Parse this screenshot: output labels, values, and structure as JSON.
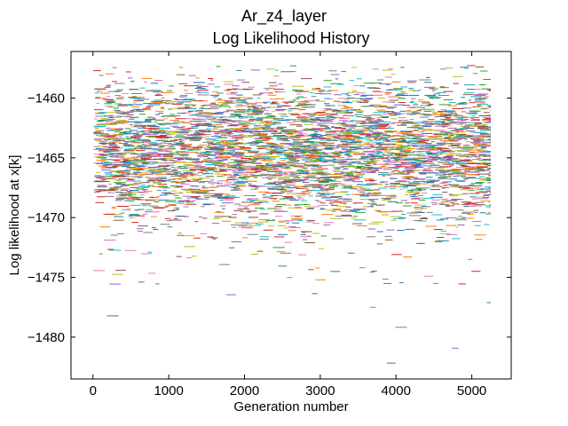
{
  "chart_data": {
    "type": "scatter",
    "title": "Ar_z4_layer",
    "subtitle": "Log Likelihood History",
    "xlabel": "Generation number",
    "ylabel": "Log likelihood at x[k]",
    "xlim": [
      -290,
      5520
    ],
    "ylim": [
      -1483.5,
      -1456.1
    ],
    "x_ticks": [
      0,
      1000,
      2000,
      3000,
      4000,
      5000
    ],
    "y_ticks": [
      -1460,
      -1465,
      -1470,
      -1475,
      -1480
    ],
    "grid": false,
    "legend": "none",
    "generations": [
      0,
      5250
    ],
    "density_profile": {
      "core_range": [
        -1470,
        -1459
      ],
      "upper_extent": -1457.2,
      "lower_extent": -1482.2
    },
    "series_colors": [
      "#1f77b4",
      "#ff7f0e",
      "#2ca02c",
      "#d62728",
      "#9467bd",
      "#8c564b",
      "#e377c2",
      "#7f7f7f",
      "#bcbd22",
      "#17becf"
    ]
  }
}
